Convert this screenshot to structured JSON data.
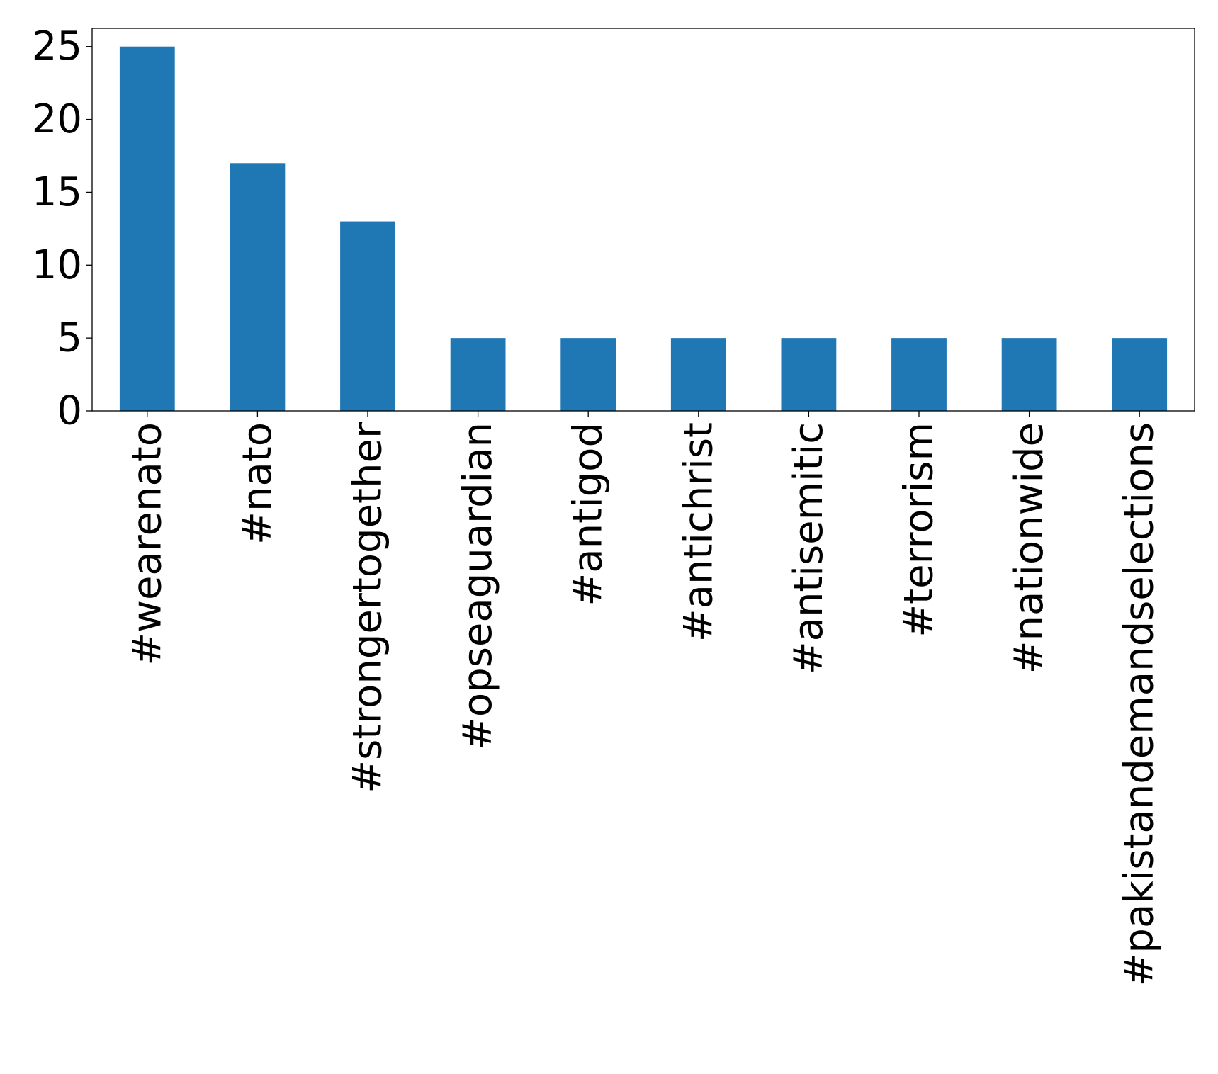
{
  "chart_data": {
    "type": "bar",
    "categories": [
      "#wearenato",
      "#nato",
      "#strongertogether",
      "#opseaguardian",
      "#antigod",
      "#antichrist",
      "#antisemitic",
      "#terrorism",
      "#nationwide",
      "#pakistandemandselections"
    ],
    "values": [
      25,
      17,
      13,
      5,
      5,
      5,
      5,
      5,
      5,
      5
    ],
    "title": "",
    "xlabel": "",
    "ylabel": "",
    "ylim": [
      0,
      26.25
    ],
    "yticks": [
      0,
      5,
      10,
      15,
      20,
      25
    ],
    "grid": false,
    "bar_color": "#1f77b4"
  }
}
